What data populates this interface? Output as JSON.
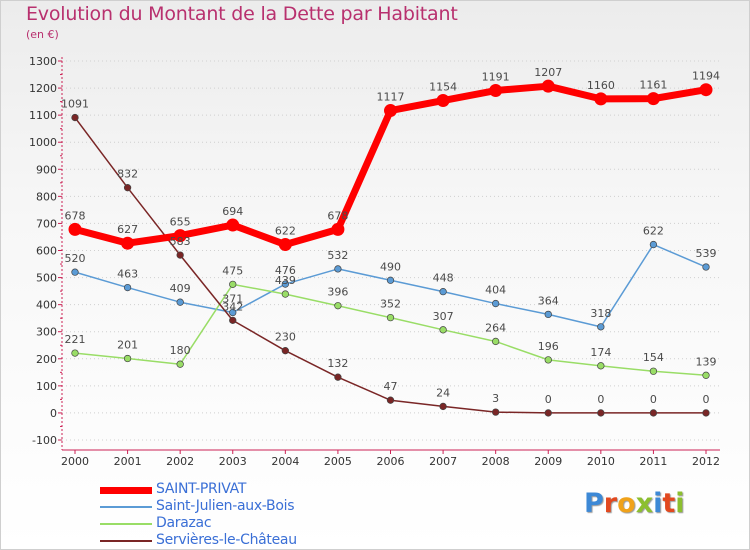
{
  "header": {
    "title": "Evolution du Montant de la Dette par Habitant",
    "subtitle": "(en €)"
  },
  "logo": {
    "text": "Proxiti",
    "letters": [
      "P",
      "r",
      "o",
      "x",
      "i",
      "t",
      "i"
    ]
  },
  "chart_data": {
    "type": "line",
    "title": "Evolution du Montant de la Dette par Habitant",
    "subtitle": "(en €)",
    "xlabel": "",
    "ylabel": "",
    "ylim": [
      -100,
      1300
    ],
    "yticks": [
      -100,
      0,
      100,
      200,
      300,
      400,
      500,
      600,
      700,
      800,
      900,
      1000,
      1100,
      1200,
      1300
    ],
    "x": [
      2000,
      2001,
      2002,
      2003,
      2004,
      2005,
      2006,
      2007,
      2008,
      2009,
      2010,
      2011,
      2012
    ],
    "grid": "horizontal dotted",
    "legend_position": "bottom-left",
    "series": [
      {
        "name": "SAINT-PRIVAT",
        "color": "#ff0000",
        "emphasis": "thick",
        "values": [
          678,
          627,
          655,
          694,
          622,
          678,
          1117,
          1154,
          1191,
          1207,
          1160,
          1161,
          1194
        ],
        "labels": [
          "678",
          "627",
          "655",
          "694",
          "622",
          "678",
          "1117",
          "1154",
          "1191",
          "1207",
          "1160",
          "1161",
          "1194"
        ]
      },
      {
        "name": "Saint-Julien-aux-Bois",
        "color": "#5b9bd5",
        "emphasis": "thin",
        "values": [
          520,
          463,
          409,
          371,
          476,
          532,
          490,
          448,
          404,
          364,
          318,
          622,
          539
        ],
        "labels": [
          "520",
          "463",
          "409",
          "371",
          "476",
          "532",
          "490",
          "448",
          "404",
          "364",
          "318",
          "622",
          "539"
        ]
      },
      {
        "name": "Darazac",
        "color": "#99dd66",
        "emphasis": "thin",
        "values": [
          221,
          201,
          180,
          475,
          439,
          396,
          352,
          307,
          264,
          196,
          174,
          154,
          139
        ],
        "labels": [
          "221",
          "201",
          "180",
          "475",
          "439",
          "396",
          "352",
          "307",
          "264",
          "196",
          "174",
          "154",
          "139"
        ]
      },
      {
        "name": "Servières-le-Château",
        "color": "#7a2626",
        "emphasis": "thin",
        "values": [
          1091,
          832,
          583,
          342,
          230,
          132,
          47,
          24,
          3,
          0,
          0,
          0,
          0
        ],
        "labels": [
          "1091",
          "832",
          "583",
          "342",
          "230",
          "132",
          "47",
          "24",
          "3",
          "0",
          "0",
          "0",
          "0"
        ]
      }
    ]
  }
}
